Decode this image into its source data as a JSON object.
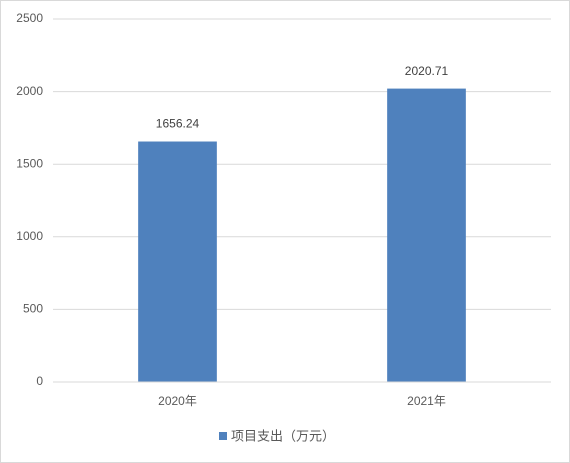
{
  "chart_data": {
    "type": "bar",
    "categories": [
      "2020年",
      "2021年"
    ],
    "series": [
      {
        "name": "项目支出（万元）",
        "color": "#4f81bd",
        "values": [
          1656.24,
          2020.71
        ]
      }
    ],
    "ylim": [
      0,
      2500
    ],
    "yticks": [
      0,
      500,
      1000,
      1500,
      2000,
      2500
    ],
    "grid": true,
    "legend": "bottom"
  }
}
